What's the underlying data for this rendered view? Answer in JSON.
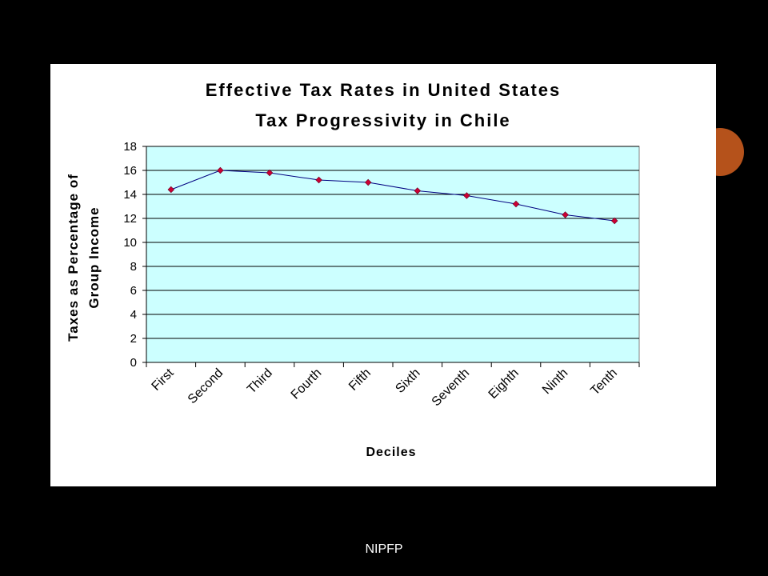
{
  "footer": "NIPFP",
  "colors": {
    "plot_bg": "#ccffff",
    "line": "#000080",
    "marker": "#cc0033",
    "panel": "#ffffff",
    "accent": "#b5521b"
  },
  "chart_data": {
    "type": "line",
    "title": "Effective Tax Rates in United States",
    "subtitle": "Tax Progressivity in Chile",
    "xlabel": "Deciles",
    "ylabel_line1": "Taxes as Percentage of",
    "ylabel_line2": "Group Income",
    "categories": [
      "First",
      "Second",
      "Third",
      "Fourth",
      "Fifth",
      "Sixth",
      "Seventh",
      "Eighth",
      "Ninth",
      "Tenth"
    ],
    "values": [
      14.4,
      16.0,
      15.8,
      15.2,
      15.0,
      14.3,
      13.9,
      13.2,
      12.3,
      11.8
    ],
    "ylim": [
      0,
      18
    ],
    "yticks": [
      "0",
      "2",
      "4",
      "6",
      "8",
      "10",
      "12",
      "14",
      "16",
      "18"
    ],
    "grid": true,
    "legend": "none"
  }
}
